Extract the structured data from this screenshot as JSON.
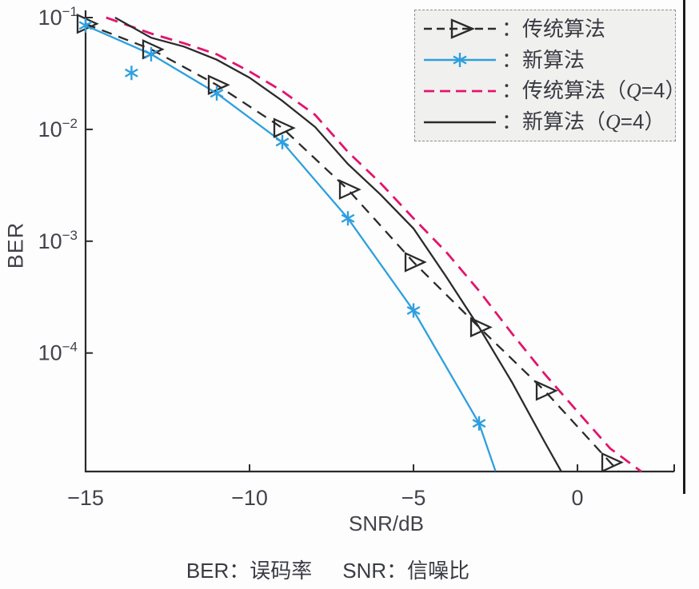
{
  "figure": {
    "ylabel": "BER",
    "xlabel": "SNR/dB",
    "caption_left": "BER：误码率",
    "caption_right": "SNR：信噪比"
  },
  "legend": {
    "items": [
      {
        "pre": "：传统算法",
        "q": "",
        "post": ""
      },
      {
        "pre": "：新算法",
        "q": "",
        "post": ""
      },
      {
        "pre": "：传统算法（",
        "q": "Q",
        "post": "=4）"
      },
      {
        "pre": "：新算法（",
        "q": "Q",
        "post": "=4）"
      }
    ]
  },
  "chart_data": {
    "type": "line",
    "title": "",
    "xlabel": "SNR/dB",
    "ylabel": "BER",
    "x_ticks": [
      -15,
      -10,
      -5,
      0
    ],
    "x_range": [
      -15,
      2.95
    ],
    "y_scale": "log",
    "y_tick_base": "10",
    "y_tick_exponents": [
      -1,
      -2,
      -3,
      -4
    ],
    "y_range_exponents": [
      -5.06,
      -1
    ],
    "grid": false,
    "legend_position": "top-right",
    "colors": {
      "axis": "#2a2a2e",
      "tick_text": "#42424c",
      "black_line": "#2b2b2b",
      "blue_line": "#2e9fdf",
      "magenta_line": "#e3146e",
      "legend_bg": "#f0f0ee",
      "legend_border": "#8f8f8f"
    },
    "series": [
      {
        "name": "传统算法",
        "color": "#2b2b2b",
        "style": "dashed",
        "marker": "triangle-right",
        "line_points": [
          [
            -15,
            0.088
          ],
          [
            -13,
            0.052
          ],
          [
            -11,
            0.025
          ],
          [
            -9,
            0.0103
          ],
          [
            -7,
            0.0029
          ],
          [
            -5,
            0.00065
          ],
          [
            -3,
            0.00017
          ],
          [
            -1,
            4.6e-05
          ],
          [
            1,
            1.05e-05
          ],
          [
            1.25,
            8.8e-06
          ]
        ],
        "marker_points": [
          [
            -15,
            0.088
          ],
          [
            -13,
            0.052
          ],
          [
            -11,
            0.025
          ],
          [
            -9,
            0.0103
          ],
          [
            -7,
            0.0029
          ],
          [
            -5,
            0.00065
          ],
          [
            -3,
            0.00017
          ],
          [
            -1,
            4.6e-05
          ],
          [
            1,
            1.05e-05
          ]
        ]
      },
      {
        "name": "新算法",
        "color": "#2e9fdf",
        "style": "solid",
        "marker": "asterisk",
        "line_points": [
          [
            -15,
            0.085
          ],
          [
            -13,
            0.047
          ],
          [
            -11,
            0.021
          ],
          [
            -9,
            0.0077
          ],
          [
            -7,
            0.0016
          ],
          [
            -5,
            0.00024
          ],
          [
            -3,
            2.35e-05
          ],
          [
            -2.5,
            8.8e-06
          ]
        ],
        "marker_points": [
          [
            -15,
            0.085
          ],
          [
            -13,
            0.047
          ],
          [
            -11,
            0.021
          ],
          [
            -9,
            0.0077
          ],
          [
            -7,
            0.0016
          ],
          [
            -5,
            0.00024
          ],
          [
            -3,
            2.35e-05
          ]
        ],
        "extra_marker_points": [
          [
            -13.6,
            0.032
          ]
        ]
      },
      {
        "name": "传统算法（Q=4）",
        "color": "#e3146e",
        "style": "dashed",
        "marker": "none",
        "line_points": [
          [
            -14.37,
            0.1
          ],
          [
            -13,
            0.072
          ],
          [
            -12,
            0.059
          ],
          [
            -11,
            0.047
          ],
          [
            -10,
            0.033
          ],
          [
            -9,
            0.022
          ],
          [
            -8,
            0.0135
          ],
          [
            -7,
            0.0063
          ],
          [
            -6,
            0.0033
          ],
          [
            -5,
            0.0016
          ],
          [
            -4,
            0.0008
          ],
          [
            -3,
            0.00036
          ],
          [
            -2,
            0.00015
          ],
          [
            -1,
            6.5e-05
          ],
          [
            0,
            3e-05
          ],
          [
            1,
            1.4e-05
          ],
          [
            1.95,
            8.7e-06
          ]
        ],
        "marker_points": []
      },
      {
        "name": "新算法（Q=4）",
        "color": "#2b2b2b",
        "style": "solid",
        "marker": "none",
        "line_points": [
          [
            -14.1,
            0.1
          ],
          [
            -13,
            0.066
          ],
          [
            -12,
            0.055
          ],
          [
            -11,
            0.042
          ],
          [
            -10,
            0.029
          ],
          [
            -9,
            0.018
          ],
          [
            -8,
            0.0105
          ],
          [
            -7,
            0.0049
          ],
          [
            -6,
            0.0026
          ],
          [
            -5,
            0.0013
          ],
          [
            -4,
            0.00048
          ],
          [
            -3,
            0.00017
          ],
          [
            -2,
            5.5e-05
          ],
          [
            -1,
            1.6e-05
          ],
          [
            -0.5,
            8.8e-06
          ]
        ],
        "marker_points": []
      }
    ]
  }
}
